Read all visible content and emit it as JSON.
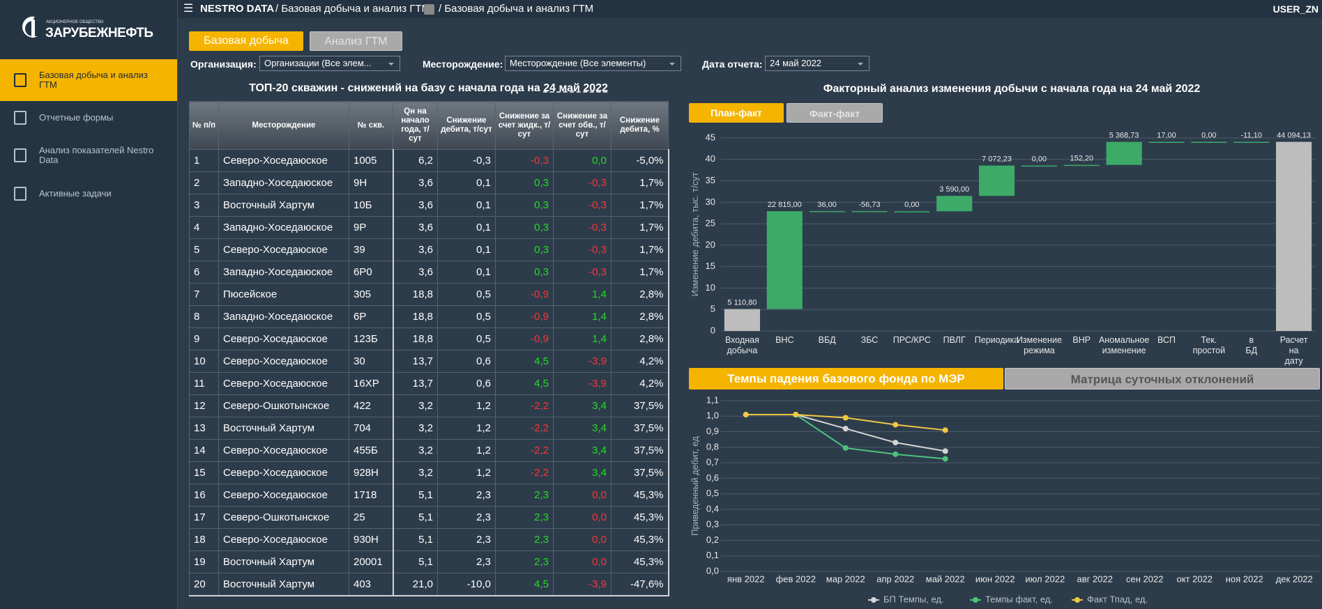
{
  "header": {
    "app": "NESTRO DATA",
    "crumb1": "/ Базовая добыча и анализ ГТМ",
    "crumb2": "/ Базовая добыча и анализ ГТМ",
    "user": "USER_ZN"
  },
  "logo": {
    "small": "АКЦИОНЕРНОЕ ОБЩЕСТВО",
    "name": "ЗАРУБЕЖНЕФТЬ"
  },
  "sidebar": {
    "items": [
      "Базовая добыча и анализ ГТМ",
      "Отчетные формы",
      "Анализ показателей Nestro Data",
      "Активные задачи"
    ]
  },
  "tabs": [
    "Базовая добыча",
    "Анализ ГТМ"
  ],
  "filters": {
    "org_label": "Организация:",
    "org_value": "Организации (Все элем...",
    "field_label": "Месторождение:",
    "field_value": "Месторождение (Все элементы)",
    "date_label": "Дата отчета:",
    "date_value": "24 май 2022"
  },
  "table": {
    "title": "ТОП-20 скважин - снижений на базу с начала года на",
    "date": "24 май 2022",
    "columns": [
      "№ п/п",
      "Месторождение",
      "№ скв.",
      "Qн на начало года, т/сут",
      "Снижение дебита, т/сут",
      "Снижение за счет жидк., т/сут",
      "Снижение за счет обв., т/сут",
      "Снижение дебита, %"
    ],
    "rows": [
      [
        "1",
        "Северо-Хоседаюское",
        "1005",
        "6,2",
        "-0,3",
        "-0,3",
        "0,0",
        "-5,0%"
      ],
      [
        "2",
        "Западно-Хоседаюское",
        "9Н",
        "3,6",
        "0,1",
        "0,3",
        "-0,3",
        "1,7%"
      ],
      [
        "3",
        "Восточный Хартум",
        "10Б",
        "3,6",
        "0,1",
        "0,3",
        "-0,3",
        "1,7%"
      ],
      [
        "4",
        "Западно-Хоседаюское",
        "9Р",
        "3,6",
        "0,1",
        "0,3",
        "-0,3",
        "1,7%"
      ],
      [
        "5",
        "Северо-Хоседаюское",
        "39",
        "3,6",
        "0,1",
        "0,3",
        "-0,3",
        "1,7%"
      ],
      [
        "6",
        "Западно-Хоседаюское",
        "6Р0",
        "3,6",
        "0,1",
        "0,3",
        "-0,3",
        "1,7%"
      ],
      [
        "7",
        "Пюсейское",
        "305",
        "18,8",
        "0,5",
        "-0,9",
        "1,4",
        "2,8%"
      ],
      [
        "8",
        "Западно-Хоседаюское",
        "6Р",
        "18,8",
        "0,5",
        "-0,9",
        "1,4",
        "2,8%"
      ],
      [
        "9",
        "Северо-Хоседаюское",
        "123Б",
        "18,8",
        "0,5",
        "-0,9",
        "1,4",
        "2,8%"
      ],
      [
        "10",
        "Северо-Хоседаюское",
        "30",
        "13,7",
        "0,6",
        "4,5",
        "-3,9",
        "4,2%"
      ],
      [
        "11",
        "Северо-Хоседаюское",
        "16ХР",
        "13,7",
        "0,6",
        "4,5",
        "-3,9",
        "4,2%"
      ],
      [
        "12",
        "Северо-Ошкотынское",
        "422",
        "3,2",
        "1,2",
        "-2,2",
        "3,4",
        "37,5%"
      ],
      [
        "13",
        "Восточный Хартум",
        "704",
        "3,2",
        "1,2",
        "-2,2",
        "3,4",
        "37,5%"
      ],
      [
        "14",
        "Северо-Хоседаюское",
        "455Б",
        "3,2",
        "1,2",
        "-2,2",
        "3,4",
        "37,5%"
      ],
      [
        "15",
        "Северо-Хоседаюское",
        "928Н",
        "3,2",
        "1,2",
        "-2,2",
        "3,4",
        "37,5%"
      ],
      [
        "16",
        "Северо-Хоседаюское",
        "1718",
        "5,1",
        "2,3",
        "2,3",
        "0,0",
        "45,3%"
      ],
      [
        "17",
        "Северо-Ошкотынское",
        "25",
        "5,1",
        "2,3",
        "2,3",
        "0,0",
        "45,3%"
      ],
      [
        "18",
        "Северо-Хоседаюское",
        "930Н",
        "5,1",
        "2,3",
        "2,3",
        "0,0",
        "45,3%"
      ],
      [
        "19",
        "Восточный Хартум",
        "20001",
        "5,1",
        "2,3",
        "2,3",
        "0,0",
        "45,3%"
      ],
      [
        "20",
        "Восточный Хартум",
        "403",
        "21,0",
        "-10,0",
        "4,5",
        "-3,9",
        "-47,6%"
      ]
    ],
    "tones": [
      [
        "#ff3333",
        "#22dd22"
      ],
      [
        "#22dd22",
        "#ff3333"
      ],
      [
        "#22dd22",
        "#ff3333"
      ],
      [
        "#22dd22",
        "#ff3333"
      ],
      [
        "#22dd22",
        "#ff3333"
      ],
      [
        "#22dd22",
        "#ff3333"
      ],
      [
        "#ff3333",
        "#22dd22"
      ],
      [
        "#ff3333",
        "#22dd22"
      ],
      [
        "#ff3333",
        "#22dd22"
      ],
      [
        "#22dd22",
        "#ff3333"
      ],
      [
        "#22dd22",
        "#ff3333"
      ],
      [
        "#ff3333",
        "#22dd22"
      ],
      [
        "#ff3333",
        "#22dd22"
      ],
      [
        "#ff3333",
        "#22dd22"
      ],
      [
        "#ff3333",
        "#22dd22"
      ],
      [
        "#22dd22",
        "#ff3333"
      ],
      [
        "#22dd22",
        "#ff3333"
      ],
      [
        "#22dd22",
        "#ff3333"
      ],
      [
        "#22dd22",
        "#ff3333"
      ],
      [
        "#22dd22",
        "#ff3333"
      ]
    ]
  },
  "factor_tabs": [
    "План-факт",
    "Факт-факт"
  ],
  "trend_tabs": [
    "Темпы падения базового фонда по МЭР",
    "Матрица суточных отклонений"
  ],
  "chart_data": [
    {
      "type": "waterfall",
      "title": "Факторный анализ изменения добычи с начала года на 24 май 2022",
      "y_label": "Изменение дебита, тыс. т/сут",
      "categories": [
        "Входная добыча",
        "ВНС",
        "ВБД",
        "ЗБС",
        "ПРС/КРС",
        "ПВЛГ",
        "Периодика",
        "Изменение режима",
        "ВНР",
        "Аномальное изменение",
        "ВСП",
        "Тек. простой",
        "в БД",
        "Расчет на дату"
      ],
      "values": [
        5.1108,
        22.815,
        0.036,
        -0.05673,
        0,
        3.59,
        7.07223,
        0,
        0.1522,
        5.36873,
        0.017,
        0,
        -0.0111,
        44.09413
      ],
      "value_labels": [
        "5 110,80",
        "22 815,00",
        "36,00",
        "-56,73",
        "0,00",
        "3 590,00",
        "7 072,23",
        "0,00",
        "152,20",
        "5 368,73",
        "17,00",
        "0,00",
        "-11,10",
        "44 094,13"
      ],
      "color": "#3daa68",
      "total_color": "#bdbdbd",
      "ylim": [
        0,
        45
      ],
      "yticks": [
        0,
        5,
        10,
        15,
        20,
        25,
        30,
        35,
        40,
        45
      ],
      "grid": true
    },
    {
      "type": "line",
      "y_label": "Приведенный дебит, ед",
      "categories": [
        "янв 2022",
        "фев 2022",
        "мар 2022",
        "апр 2022",
        "май 2022",
        "июн 2022",
        "июл 2022",
        "авг 2022",
        "сен 2022",
        "окт 2022",
        "ноя 2022",
        "дек 2022"
      ],
      "series": [
        {
          "name": "БП Темпы, ед.",
          "color": "#d4d4d4",
          "values": [
            1.01,
            1.01,
            0.92,
            0.83,
            0.775,
            null,
            null,
            null,
            null,
            null,
            null,
            null
          ]
        },
        {
          "name": "Темпы факт, ед.",
          "color": "#4cc47e",
          "values": [
            1.01,
            1.01,
            0.795,
            0.755,
            0.725,
            null,
            null,
            null,
            null,
            null,
            null,
            null
          ]
        },
        {
          "name": "Факт Тпад, ед.",
          "color": "#f2c744",
          "values": [
            1.01,
            1.01,
            0.99,
            0.945,
            0.91,
            null,
            null,
            null,
            null,
            null,
            null,
            null
          ]
        }
      ],
      "ylim": [
        0,
        1.1
      ],
      "yticks": [
        {
          "value": 0,
          "label": "0,0"
        },
        {
          "value": 0.1,
          "label": "0,1"
        },
        {
          "value": 0.2,
          "label": "0,2"
        },
        {
          "value": 0.3,
          "label": "0,3"
        },
        {
          "value": 0.4,
          "label": "0,4"
        },
        {
          "value": 0.5,
          "label": "0,5"
        },
        {
          "value": 0.6,
          "label": "0,6"
        },
        {
          "value": 0.7,
          "label": "0,7"
        },
        {
          "value": 0.8,
          "label": "0,8"
        },
        {
          "value": 0.9,
          "label": "0,9"
        },
        {
          "value": 1,
          "label": "1,0"
        },
        {
          "value": 1.1,
          "label": "1,1"
        }
      ],
      "grid": true,
      "legend": "bottom"
    }
  ]
}
